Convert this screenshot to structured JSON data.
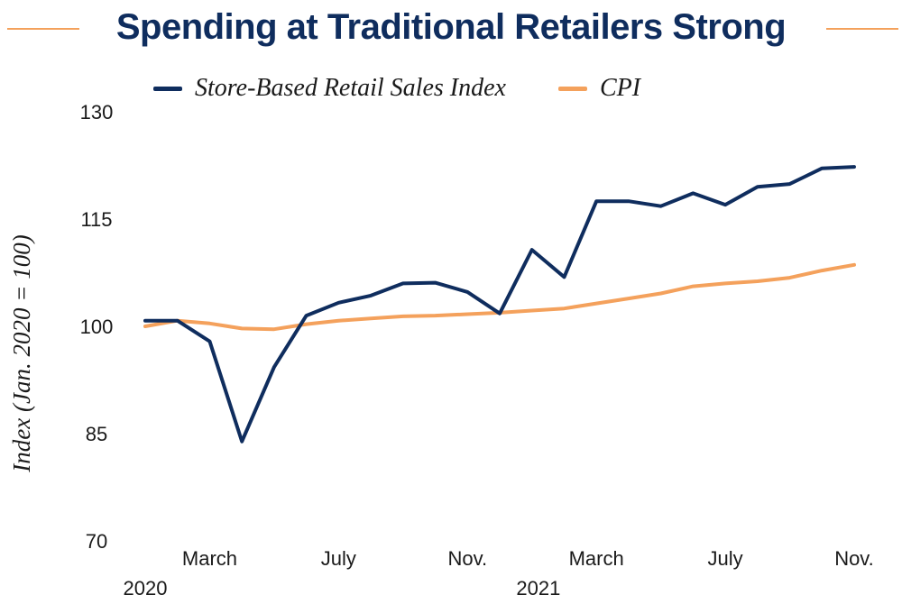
{
  "chart_data": {
    "type": "line",
    "title": "Spending at Traditional Retailers Strong",
    "ylabel": "Index (Jan. 2020 = 100)",
    "xlabel": "",
    "ylim": [
      70,
      130
    ],
    "yticks": [
      "130",
      "115",
      "100",
      "85",
      "70"
    ],
    "x": [
      "Jan 2020",
      "Feb 2020",
      "Mar 2020",
      "Apr 2020",
      "May 2020",
      "Jun 2020",
      "Jul 2020",
      "Aug 2020",
      "Sep 2020",
      "Oct 2020",
      "Nov 2020",
      "Dec 2020",
      "Jan 2021",
      "Feb 2021",
      "Mar 2021",
      "Apr 2021",
      "May 2021",
      "Jun 2021",
      "Jul 2021",
      "Aug 2021",
      "Sep 2021",
      "Oct 2021",
      "Nov 2021"
    ],
    "xtick_labels": [
      {
        "month": "March",
        "year": "2020",
        "index": 2
      },
      {
        "month": "July",
        "year": "",
        "index": 6
      },
      {
        "month": "Nov.",
        "year": "",
        "index": 10
      },
      {
        "month": "March",
        "year": "2021",
        "index": 14
      },
      {
        "month": "July",
        "year": "",
        "index": 18
      },
      {
        "month": "Nov.",
        "year": "",
        "index": 22
      }
    ],
    "year_labels": [
      {
        "text": "2020",
        "index": 0
      },
      {
        "text": "2021",
        "index": 12.2
      }
    ],
    "grid": false,
    "legend": "top",
    "series": [
      {
        "name": "Store-Based Retail Sales Index",
        "color": "#0f2d5e",
        "values": [
          100.8,
          100.8,
          97.9,
          83.9,
          94.3,
          101.5,
          103.3,
          104.3,
          106.0,
          106.1,
          104.8,
          101.8,
          110.7,
          106.9,
          117.5,
          117.5,
          116.8,
          118.6,
          117.0,
          119.5,
          119.9,
          122.1,
          122.3
        ]
      },
      {
        "name": "CPI",
        "color": "#f4a15c",
        "values": [
          100.0,
          100.8,
          100.4,
          99.7,
          99.6,
          100.3,
          100.8,
          101.1,
          101.4,
          101.5,
          101.7,
          101.9,
          102.2,
          102.5,
          103.2,
          103.9,
          104.6,
          105.6,
          106.0,
          106.3,
          106.8,
          107.8,
          108.6
        ]
      }
    ]
  }
}
